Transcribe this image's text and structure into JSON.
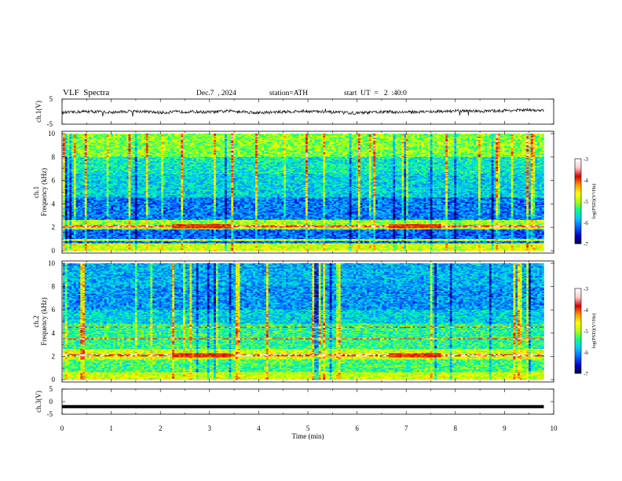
{
  "header": {
    "title": "VLF  Spectra",
    "date": "Dec.7  , 2024",
    "station": "station=ATH",
    "start": "start  UT  =   2  :40:0"
  },
  "colors": {
    "colormap": [
      "#000040",
      "#0000c8",
      "#0064ff",
      "#00c8ff",
      "#00ff96",
      "#b4ff00",
      "#ffff00",
      "#ff9600",
      "#dc0000",
      "#ffc8c8",
      "#ffffff"
    ]
  },
  "chart_data": [
    {
      "type": "line",
      "panel": "ch1-waveform",
      "ylabel": "ch.1(V)",
      "ylim": [
        -5,
        5
      ],
      "yticks": [
        "5",
        "-5"
      ],
      "x": [
        0,
        0.5,
        1,
        1.5,
        2,
        2.5,
        3,
        3.5,
        4,
        4.5,
        5,
        5.5,
        6,
        6.5,
        7,
        7.5,
        8,
        8.5,
        9,
        9.5,
        9.8
      ],
      "values": [
        -0.5,
        0.1,
        -0.3,
        0.2,
        -0.4,
        0.0,
        -0.2,
        0.3,
        -0.5,
        -0.1,
        0.2,
        -0.3,
        -0.6,
        -0.1,
        -0.2,
        0.0,
        0.3,
        0.1,
        0.4,
        0.6,
        0.3
      ]
    },
    {
      "type": "heatmap",
      "panel": "ch1-spectrogram",
      "ylabel": "ch.1\nFrequency  (kHz)",
      "ylim": [
        0,
        10
      ],
      "yticks": [
        "0",
        "2",
        "4",
        "6",
        "8",
        "10"
      ],
      "colorbar": {
        "label": "log(PSD)(V²/Hz)",
        "range": [
          -7,
          -3
        ],
        "ticks": [
          "-3",
          "-4",
          "-5",
          "-6",
          "-7"
        ]
      }
    },
    {
      "type": "heatmap",
      "panel": "ch2-spectrogram",
      "ylabel": "ch.2\nFrequency  (kHz)",
      "ylim": [
        0,
        10
      ],
      "yticks": [
        "0",
        "2",
        "4",
        "6",
        "8",
        "10"
      ],
      "colorbar": {
        "label": "log(PSD)(V²/Hz)",
        "range": [
          -7,
          -3
        ],
        "ticks": [
          "-3",
          "-4",
          "-5",
          "-6",
          "-7"
        ]
      }
    },
    {
      "type": "line",
      "panel": "ch3-waveform",
      "ylabel": "ch.3(V)",
      "ylim": [
        -5,
        5
      ],
      "yticks": [
        "5",
        "0",
        "-5"
      ],
      "x": [
        0,
        9.8
      ],
      "values": [
        -2,
        -2
      ]
    }
  ],
  "x_axis": {
    "label": "Time  (min)",
    "range": [
      0,
      10
    ],
    "ticks": [
      "0",
      "1",
      "2",
      "3",
      "4",
      "5",
      "6",
      "7",
      "8",
      "9",
      "10"
    ]
  }
}
